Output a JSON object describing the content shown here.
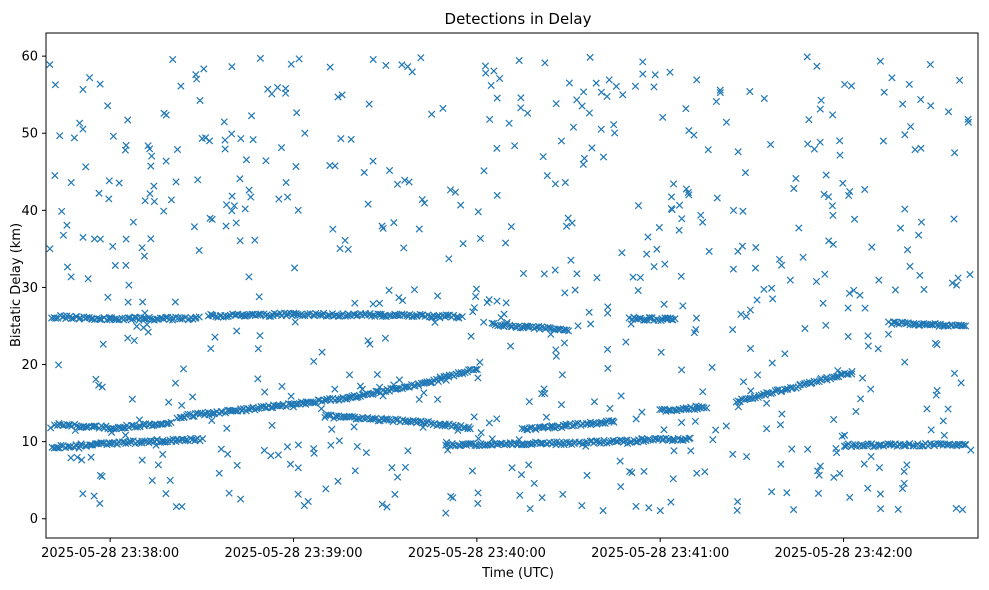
{
  "chart_data": {
    "type": "scatter",
    "title": "Detections in Delay",
    "xlabel": "Time (UTC)",
    "ylabel": "Bistatic Delay (km)",
    "x_axis_type": "time",
    "xlim": [
      "2025-05-28 23:37:39",
      "2025-05-28 23:42:44"
    ],
    "ylim": [
      -2.5,
      63
    ],
    "x_ticks": [
      "2025-05-28 23:38:00",
      "2025-05-28 23:39:00",
      "2025-05-28 23:40:00",
      "2025-05-28 23:41:00",
      "2025-05-28 23:42:00"
    ],
    "y_ticks": [
      0,
      10,
      20,
      30,
      40,
      50,
      60
    ],
    "marker": "x",
    "grid": false,
    "legend": "none",
    "color": "#1f77b4",
    "series": [
      {
        "x_start": "2025-05-28 23:37:40",
        "x_end": "2025-05-28 23:42:42",
        "structured_tracks": [
          {
            "x": [
              "2025-05-28 23:37:41",
              "2025-05-28 23:38:00",
              "2025-05-28 23:38:29"
            ],
            "y": [
              26.2,
              25.9,
              26.0
            ]
          },
          {
            "x": [
              "2025-05-28 23:38:32",
              "2025-05-28 23:39:00",
              "2025-05-28 23:39:30",
              "2025-05-28 23:39:55"
            ],
            "y": [
              26.3,
              26.5,
              26.4,
              26.2
            ]
          },
          {
            "x": [
              "2025-05-28 23:40:05",
              "2025-05-28 23:40:30"
            ],
            "y": [
              25.2,
              24.5
            ]
          },
          {
            "x": [
              "2025-05-28 23:40:50",
              "2025-05-28 23:41:05"
            ],
            "y": [
              26.0,
              25.8
            ]
          },
          {
            "x": [
              "2025-05-28 23:42:15",
              "2025-05-28 23:42:40"
            ],
            "y": [
              25.4,
              25.0
            ]
          },
          {
            "x": [
              "2025-05-28 23:37:42",
              "2025-05-28 23:38:00",
              "2025-05-28 23:38:20"
            ],
            "y": [
              12.2,
              11.8,
              12.3
            ]
          },
          {
            "x": [
              "2025-05-28 23:38:22",
              "2025-05-28 23:38:50",
              "2025-05-28 23:39:20",
              "2025-05-28 23:39:48"
            ],
            "y": [
              13.2,
              14.4,
              15.8,
              18.0
            ]
          },
          {
            "x": [
              "2025-05-28 23:39:10",
              "2025-05-28 23:39:40",
              "2025-05-28 23:39:58"
            ],
            "y": [
              13.3,
              12.6,
              11.8
            ]
          },
          {
            "x": [
              "2025-05-28 23:39:48",
              "2025-05-28 23:40:00"
            ],
            "y": [
              18.2,
              19.5
            ]
          },
          {
            "x": [
              "2025-05-28 23:40:15",
              "2025-05-28 23:40:45"
            ],
            "y": [
              11.6,
              12.6
            ]
          },
          {
            "x": [
              "2025-05-28 23:41:00",
              "2025-05-28 23:41:15"
            ],
            "y": [
              14.0,
              14.5
            ]
          },
          {
            "x": [
              "2025-05-28 23:41:25",
              "2025-05-28 23:42:03"
            ],
            "y": [
              15.2,
              19.0
            ]
          },
          {
            "x": [
              "2025-05-28 23:37:41",
              "2025-05-28 23:38:00",
              "2025-05-28 23:38:30"
            ],
            "y": [
              9.3,
              9.8,
              10.3
            ]
          },
          {
            "x": [
              "2025-05-28 23:39:50",
              "2025-05-28 23:40:30"
            ],
            "y": [
              9.6,
              9.8
            ]
          },
          {
            "x": [
              "2025-05-28 23:40:30",
              "2025-05-28 23:41:10"
            ],
            "y": [
              9.8,
              10.4
            ]
          },
          {
            "x": [
              "2025-05-28 23:42:00",
              "2025-05-28 23:42:40"
            ],
            "y": [
              9.5,
              9.6
            ]
          }
        ],
        "scattered_points_description_count": 650,
        "y_range": [
          0.5,
          60
        ]
      }
    ]
  }
}
